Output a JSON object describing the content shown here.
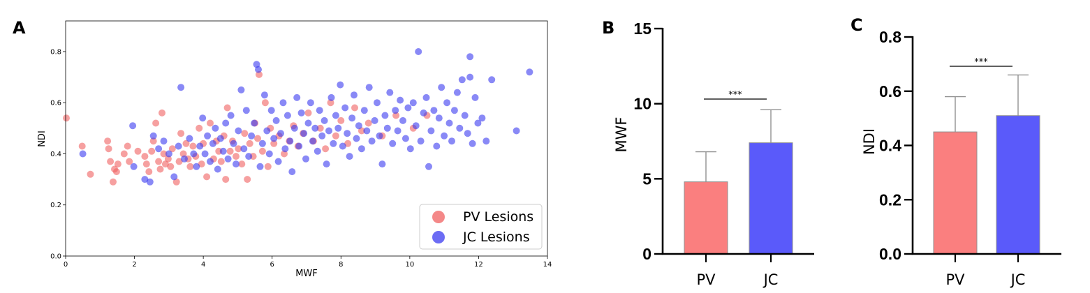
{
  "panel_labels": {
    "a": "A",
    "b": "B",
    "c": "C"
  },
  "colors": {
    "pv": "#f06060",
    "jc": "#3b3bf0",
    "bar_pv": "#fa7f7f",
    "bar_jc": "#5a5afa",
    "errorbar": "#909090"
  },
  "chart_data": [
    {
      "type": "scatter",
      "xlabel": "MWF",
      "ylabel": "NDI",
      "xlim": [
        0,
        14
      ],
      "ylim": [
        0.0,
        0.92
      ],
      "xticks": [
        "0",
        "2",
        "4",
        "6",
        "8",
        "10",
        "12",
        "14"
      ],
      "yticks": [
        "0.0",
        "0.2",
        "0.4",
        "0.6",
        "0.8"
      ],
      "legend_position": "lower-right",
      "series": [
        {
          "name": "PV Lesions",
          "points": [
            [
              0.02,
              0.54
            ],
            [
              0.48,
              0.43
            ],
            [
              0.72,
              0.32
            ],
            [
              1.22,
              0.45
            ],
            [
              1.25,
              0.42
            ],
            [
              1.3,
              0.37
            ],
            [
              1.38,
              0.29
            ],
            [
              1.42,
              0.34
            ],
            [
              1.48,
              0.33
            ],
            [
              1.52,
              0.36
            ],
            [
              1.7,
              0.4
            ],
            [
              1.8,
              0.43
            ],
            [
              1.85,
              0.37
            ],
            [
              2.1,
              0.41
            ],
            [
              2.3,
              0.39
            ],
            [
              2.35,
              0.36
            ],
            [
              2.42,
              0.33
            ],
            [
              2.5,
              0.41
            ],
            [
              2.55,
              0.45
            ],
            [
              2.62,
              0.52
            ],
            [
              2.7,
              0.37
            ],
            [
              2.75,
              0.34
            ],
            [
              2.8,
              0.56
            ],
            [
              2.85,
              0.4
            ],
            [
              2.9,
              0.36
            ],
            [
              2.98,
              0.38
            ],
            [
              3.05,
              0.35
            ],
            [
              3.1,
              0.42
            ],
            [
              3.22,
              0.29
            ],
            [
              3.3,
              0.37
            ],
            [
              3.35,
              0.48
            ],
            [
              3.42,
              0.4
            ],
            [
              3.5,
              0.44
            ],
            [
              3.56,
              0.38
            ],
            [
              3.62,
              0.35
            ],
            [
              3.7,
              0.43
            ],
            [
              3.78,
              0.39
            ],
            [
              3.88,
              0.5
            ],
            [
              3.95,
              0.36
            ],
            [
              4.0,
              0.44
            ],
            [
              4.1,
              0.31
            ],
            [
              4.2,
              0.52
            ],
            [
              4.3,
              0.38
            ],
            [
              4.38,
              0.45
            ],
            [
              4.45,
              0.41
            ],
            [
              4.52,
              0.37
            ],
            [
              4.6,
              0.47
            ],
            [
              4.65,
              0.3
            ],
            [
              4.7,
              0.58
            ],
            [
              4.78,
              0.41
            ],
            [
              4.85,
              0.45
            ],
            [
              4.95,
              0.39
            ],
            [
              5.02,
              0.42
            ],
            [
              5.12,
              0.36
            ],
            [
              5.2,
              0.48
            ],
            [
              5.28,
              0.3
            ],
            [
              5.35,
              0.44
            ],
            [
              5.45,
              0.39
            ],
            [
              5.5,
              0.52
            ],
            [
              5.58,
              0.46
            ],
            [
              5.62,
              0.71
            ],
            [
              5.72,
              0.41
            ],
            [
              5.8,
              0.6
            ],
            [
              5.88,
              0.35
            ],
            [
              5.95,
              0.5
            ],
            [
              6.05,
              0.44
            ],
            [
              6.2,
              0.47
            ],
            [
              6.35,
              0.4
            ],
            [
              6.5,
              0.45
            ],
            [
              6.62,
              0.51
            ],
            [
              6.75,
              0.43
            ],
            [
              6.9,
              0.48
            ],
            [
              7.05,
              0.56
            ],
            [
              7.2,
              0.45
            ],
            [
              7.4,
              0.5
            ],
            [
              7.55,
              0.42
            ],
            [
              7.7,
              0.6
            ],
            [
              7.85,
              0.47
            ],
            [
              8.0,
              0.53
            ],
            [
              8.2,
              0.44
            ],
            [
              8.4,
              0.58
            ],
            [
              8.6,
              0.49
            ],
            [
              8.8,
              0.52
            ],
            [
              9.2,
              0.47
            ],
            [
              9.6,
              0.55
            ],
            [
              10.1,
              0.5
            ],
            [
              10.5,
              0.55
            ]
          ]
        },
        {
          "name": "JC Lesions",
          "points": [
            [
              0.5,
              0.4
            ],
            [
              1.95,
              0.51
            ],
            [
              1.98,
              0.35
            ],
            [
              2.3,
              0.3
            ],
            [
              2.45,
              0.29
            ],
            [
              2.55,
              0.47
            ],
            [
              2.7,
              0.42
            ],
            [
              2.85,
              0.45
            ],
            [
              3.0,
              0.4
            ],
            [
              3.15,
              0.31
            ],
            [
              3.28,
              0.43
            ],
            [
              3.35,
              0.66
            ],
            [
              3.45,
              0.38
            ],
            [
              3.6,
              0.46
            ],
            [
              3.72,
              0.4
            ],
            [
              3.8,
              0.35
            ],
            [
              3.9,
              0.43
            ],
            [
              3.98,
              0.54
            ],
            [
              4.05,
              0.4
            ],
            [
              4.12,
              0.47
            ],
            [
              4.2,
              0.37
            ],
            [
              4.28,
              0.44
            ],
            [
              4.35,
              0.5
            ],
            [
              4.42,
              0.34
            ],
            [
              4.5,
              0.46
            ],
            [
              4.58,
              0.41
            ],
            [
              4.65,
              0.52
            ],
            [
              4.72,
              0.38
            ],
            [
              4.8,
              0.55
            ],
            [
              4.88,
              0.44
            ],
            [
              4.95,
              0.36
            ],
            [
              5.02,
              0.49
            ],
            [
              5.1,
              0.65
            ],
            [
              5.18,
              0.42
            ],
            [
              5.25,
              0.57
            ],
            [
              5.32,
              0.39
            ],
            [
              5.4,
              0.47
            ],
            [
              5.48,
              0.52
            ],
            [
              5.55,
              0.75
            ],
            [
              5.6,
              0.73
            ],
            [
              5.65,
              0.35
            ],
            [
              5.72,
              0.44
            ],
            [
              5.78,
              0.63
            ],
            [
              5.85,
              0.49
            ],
            [
              5.92,
              0.4
            ],
            [
              5.98,
              0.57
            ],
            [
              6.05,
              0.46
            ],
            [
              6.12,
              0.53
            ],
            [
              6.18,
              0.37
            ],
            [
              6.25,
              0.48
            ],
            [
              6.32,
              0.6
            ],
            [
              6.38,
              0.42
            ],
            [
              6.45,
              0.55
            ],
            [
              6.52,
              0.45
            ],
            [
              6.58,
              0.33
            ],
            [
              6.65,
              0.5
            ],
            [
              6.72,
              0.62
            ],
            [
              6.78,
              0.43
            ],
            [
              6.85,
              0.56
            ],
            [
              6.92,
              0.48
            ],
            [
              6.98,
              0.38
            ],
            [
              7.05,
              0.52
            ],
            [
              7.12,
              0.6
            ],
            [
              7.18,
              0.45
            ],
            [
              7.25,
              0.5
            ],
            [
              7.32,
              0.41
            ],
            [
              7.38,
              0.57
            ],
            [
              7.45,
              0.47
            ],
            [
              7.52,
              0.53
            ],
            [
              7.58,
              0.36
            ],
            [
              7.65,
              0.49
            ],
            [
              7.72,
              0.62
            ],
            [
              7.78,
              0.44
            ],
            [
              7.85,
              0.55
            ],
            [
              7.92,
              0.5
            ],
            [
              7.98,
              0.67
            ],
            [
              8.05,
              0.43
            ],
            [
              8.12,
              0.58
            ],
            [
              8.18,
              0.48
            ],
            [
              8.25,
              0.39
            ],
            [
              8.32,
              0.54
            ],
            [
              8.38,
              0.63
            ],
            [
              8.45,
              0.46
            ],
            [
              8.52,
              0.51
            ],
            [
              8.6,
              0.42
            ],
            [
              8.68,
              0.57
            ],
            [
              8.75,
              0.49
            ],
            [
              8.82,
              0.66
            ],
            [
              8.9,
              0.45
            ],
            [
              8.98,
              0.53
            ],
            [
              9.05,
              0.6
            ],
            [
              9.12,
              0.47
            ],
            [
              9.2,
              0.36
            ],
            [
              9.28,
              0.55
            ],
            [
              9.35,
              0.5
            ],
            [
              9.42,
              0.64
            ],
            [
              9.5,
              0.44
            ],
            [
              9.58,
              0.57
            ],
            [
              9.65,
              0.49
            ],
            [
              9.72,
              0.61
            ],
            [
              9.8,
              0.53
            ],
            [
              9.88,
              0.46
            ],
            [
              9.95,
              0.58
            ],
            [
              10.02,
              0.42
            ],
            [
              10.1,
              0.6
            ],
            [
              10.18,
              0.51
            ],
            [
              10.25,
              0.8
            ],
            [
              10.32,
              0.45
            ],
            [
              10.4,
              0.56
            ],
            [
              10.48,
              0.62
            ],
            [
              10.55,
              0.35
            ],
            [
              10.62,
              0.49
            ],
            [
              10.7,
              0.57
            ],
            [
              10.78,
              0.43
            ],
            [
              10.85,
              0.54
            ],
            [
              10.92,
              0.66
            ],
            [
              11.0,
              0.47
            ],
            [
              11.08,
              0.6
            ],
            [
              11.15,
              0.52
            ],
            [
              11.22,
              0.45
            ],
            [
              11.3,
              0.57
            ],
            [
              11.38,
              0.64
            ],
            [
              11.45,
              0.5
            ],
            [
              11.52,
              0.69
            ],
            [
              11.6,
              0.55
            ],
            [
              11.68,
              0.48
            ],
            [
              11.75,
              0.7
            ],
            [
              11.75,
              0.78
            ],
            [
              11.82,
              0.44
            ],
            [
              11.9,
              0.62
            ],
            [
              11.98,
              0.52
            ],
            [
              12.1,
              0.54
            ],
            [
              12.22,
              0.45
            ],
            [
              12.38,
              0.69
            ],
            [
              13.1,
              0.49
            ],
            [
              13.48,
              0.72
            ]
          ]
        }
      ]
    },
    {
      "type": "bar",
      "ylabel": "MWF",
      "ylim": [
        0,
        15
      ],
      "yticks": [
        "0",
        "5",
        "10",
        "15"
      ],
      "categories": [
        "PV",
        "JC"
      ],
      "values": [
        4.8,
        7.4
      ],
      "errors": [
        2.0,
        2.2
      ],
      "significance": "***"
    },
    {
      "type": "bar",
      "ylabel": "NDI",
      "ylim": [
        0,
        0.8
      ],
      "yticks": [
        "0.0",
        "0.2",
        "0.4",
        "0.6",
        "0.8"
      ],
      "categories": [
        "PV",
        "JC"
      ],
      "values": [
        0.45,
        0.51
      ],
      "errors": [
        0.13,
        0.15
      ],
      "significance": "***"
    }
  ]
}
